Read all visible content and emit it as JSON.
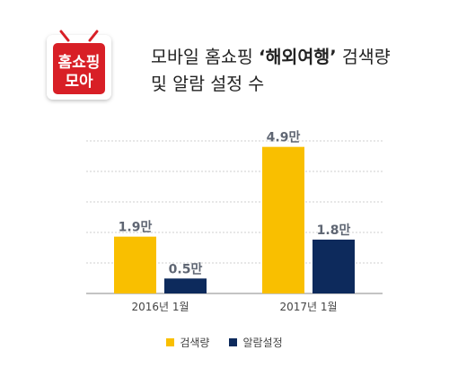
{
  "logo": {
    "line1": "홈쇼핑",
    "line2": "모아",
    "colors": {
      "red": "#d81f26",
      "white": "#ffffff"
    }
  },
  "title": {
    "prefix": "모바일 홈쇼핑 ",
    "highlight": "‘해외여행’",
    "suffix": " 검색량",
    "line2": "및 알람 설정 수"
  },
  "chart_data": {
    "type": "bar",
    "categories": [
      "2016년 1월",
      "2017년 1월"
    ],
    "series": [
      {
        "name": "검색량",
        "values": [
          1.9,
          4.9
        ],
        "labels": [
          "1.9만",
          "4.9만"
        ],
        "color": "#f9bf00"
      },
      {
        "name": "알람설정",
        "values": [
          0.5,
          1.8
        ],
        "labels": [
          "0.5만",
          "1.8만"
        ],
        "color": "#0d2a5c"
      }
    ],
    "ylim": [
      0,
      5.1
    ],
    "grid": true,
    "grid_color": "#cfcfcf",
    "legend_position": "bottom"
  }
}
